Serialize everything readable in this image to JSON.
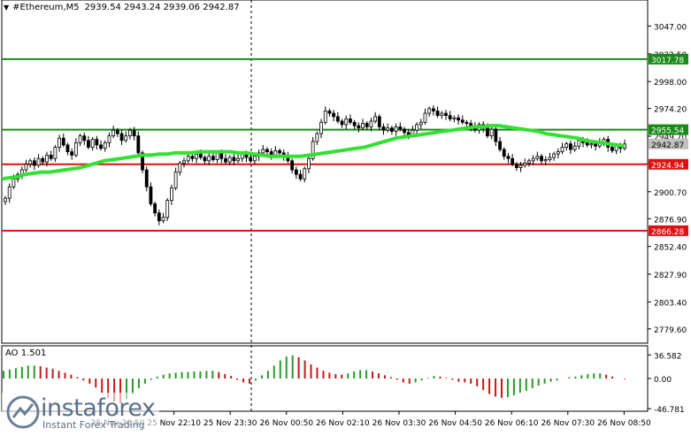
{
  "header": {
    "symbol": "#Ethereum,M5",
    "open": "2939.54",
    "high": "2943.24",
    "low": "2939.06",
    "close": "2942.87"
  },
  "indicator": {
    "name": "AO 1.501"
  },
  "watermark": {
    "brand": "instaforex",
    "tagline": "Instant Forex Trading"
  },
  "colors": {
    "candle": "#000000",
    "ma": "#33e033",
    "support_line": "#e01010",
    "resistance_line": "#1a8a1a",
    "ao_up": "#2a9a2a",
    "ao_down": "#c81818",
    "current_price_tag": "#c0c0c0"
  },
  "chart_data": [
    {
      "type": "candlestick",
      "ylim": [
        2767.0,
        3070.0
      ],
      "y_ticks": [
        "3047.00",
        "3022.50",
        "2998.00",
        "2974.20",
        "2949.70",
        "2925.40",
        "2900.70",
        "2876.90",
        "2852.40",
        "2827.90",
        "2803.40",
        "2779.60"
      ],
      "x_labels": [
        "25 Nov 20:50",
        "25 Nov 22:10",
        "25 Nov 23:30",
        "26 Nov 00:50",
        "26 Nov 02:10",
        "26 Nov 03:30",
        "26 Nov 04:50",
        "26 Nov 06:10",
        "26 Nov 07:30",
        "26 Nov 08:50"
      ],
      "horizontal_levels": [
        {
          "label": "3017.78",
          "value": 3017.78,
          "color": "#1a8a1a"
        },
        {
          "label": "2955.54",
          "value": 2955.54,
          "color": "#1a8a1a"
        },
        {
          "label": "2924.94",
          "value": 2924.94,
          "color": "#e01010"
        },
        {
          "label": "2866.28",
          "value": 2866.28,
          "color": "#e01010"
        }
      ],
      "current_price": "2942.87",
      "close_series": [
        2895,
        2905,
        2912,
        2916,
        2920,
        2925,
        2928,
        2924,
        2930,
        2927,
        2933,
        2930,
        2940,
        2948,
        2942,
        2936,
        2933,
        2944,
        2950,
        2946,
        2940,
        2947,
        2942,
        2939,
        2944,
        2950,
        2955,
        2952,
        2946,
        2950,
        2955,
        2950,
        2935,
        2920,
        2905,
        2890,
        2882,
        2875,
        2878,
        2893,
        2904,
        2918,
        2926,
        2928,
        2932,
        2930,
        2934,
        2931,
        2928,
        2932,
        2929,
        2935,
        2930,
        2927,
        2931,
        2928,
        2930,
        2934,
        2931,
        2928,
        2932,
        2935,
        2938,
        2936,
        2933,
        2937,
        2935,
        2932,
        2928,
        2920,
        2916,
        2912,
        2921,
        2930,
        2945,
        2952,
        2962,
        2972,
        2970,
        2967,
        2963,
        2960,
        2965,
        2962,
        2959,
        2957,
        2961,
        2958,
        2963,
        2967,
        2958,
        2955,
        2957,
        2954,
        2958,
        2956,
        2953,
        2951,
        2955,
        2960,
        2962,
        2970,
        2974,
        2972,
        2968,
        2970,
        2968,
        2965,
        2966,
        2964,
        2962,
        2961,
        2958,
        2955,
        2960,
        2957,
        2950,
        2956,
        2945,
        2938,
        2932,
        2930,
        2925,
        2922,
        2924,
        2926,
        2928,
        2930,
        2932,
        2928,
        2929,
        2931,
        2934,
        2936,
        2940,
        2943,
        2938,
        2941,
        2946,
        2944,
        2942,
        2943,
        2941,
        2944,
        2947,
        2940,
        2937,
        2941,
        2939,
        2942.87
      ],
      "ma_series": [
        2912,
        2913,
        2914,
        2916,
        2917,
        2918,
        2918,
        2919,
        2920,
        2921,
        2922,
        2924,
        2926,
        2928,
        2929,
        2930,
        2931,
        2932,
        2933,
        2933,
        2934,
        2934,
        2935,
        2935,
        2935,
        2936,
        2936,
        2936,
        2936,
        2936,
        2935,
        2935,
        2934,
        2933,
        2932,
        2932,
        2932,
        2932,
        2932,
        2933,
        2934,
        2935,
        2936,
        2937,
        2938,
        2939,
        2940,
        2942,
        2944,
        2946,
        2948,
        2949,
        2950,
        2951,
        2952,
        2953,
        2954,
        2955,
        2956,
        2957,
        2958,
        2958,
        2959,
        2959,
        2958,
        2957,
        2956,
        2955,
        2954,
        2952,
        2951,
        2950,
        2949,
        2948,
        2946,
        2945,
        2944,
        2943,
        2942,
        2941
      ],
      "ao_values": [
        12,
        14,
        16,
        18,
        20,
        20,
        19,
        17,
        15,
        12,
        9,
        6,
        2,
        -3,
        -8,
        -14,
        -22,
        -30,
        -36,
        -38,
        -32,
        -24,
        -15,
        -8,
        -2,
        3,
        6,
        8,
        9,
        10,
        10,
        11,
        11,
        12,
        12,
        10,
        7,
        4,
        -2,
        -6,
        -8,
        -3,
        5,
        12,
        20,
        28,
        34,
        36,
        33,
        28,
        22,
        17,
        12,
        9,
        7,
        6,
        8,
        11,
        13,
        13,
        11,
        8,
        5,
        2,
        -2,
        -6,
        -8,
        -6,
        -3,
        1,
        4,
        3,
        1,
        -2,
        -5,
        -6,
        -8,
        -12,
        -18,
        -24,
        -28,
        -30,
        -29,
        -26,
        -22,
        -19,
        -15,
        -11,
        -8,
        -5,
        -3,
        0,
        2,
        3,
        5,
        7,
        8,
        8,
        6,
        3,
        0,
        -1
      ]
    }
  ]
}
